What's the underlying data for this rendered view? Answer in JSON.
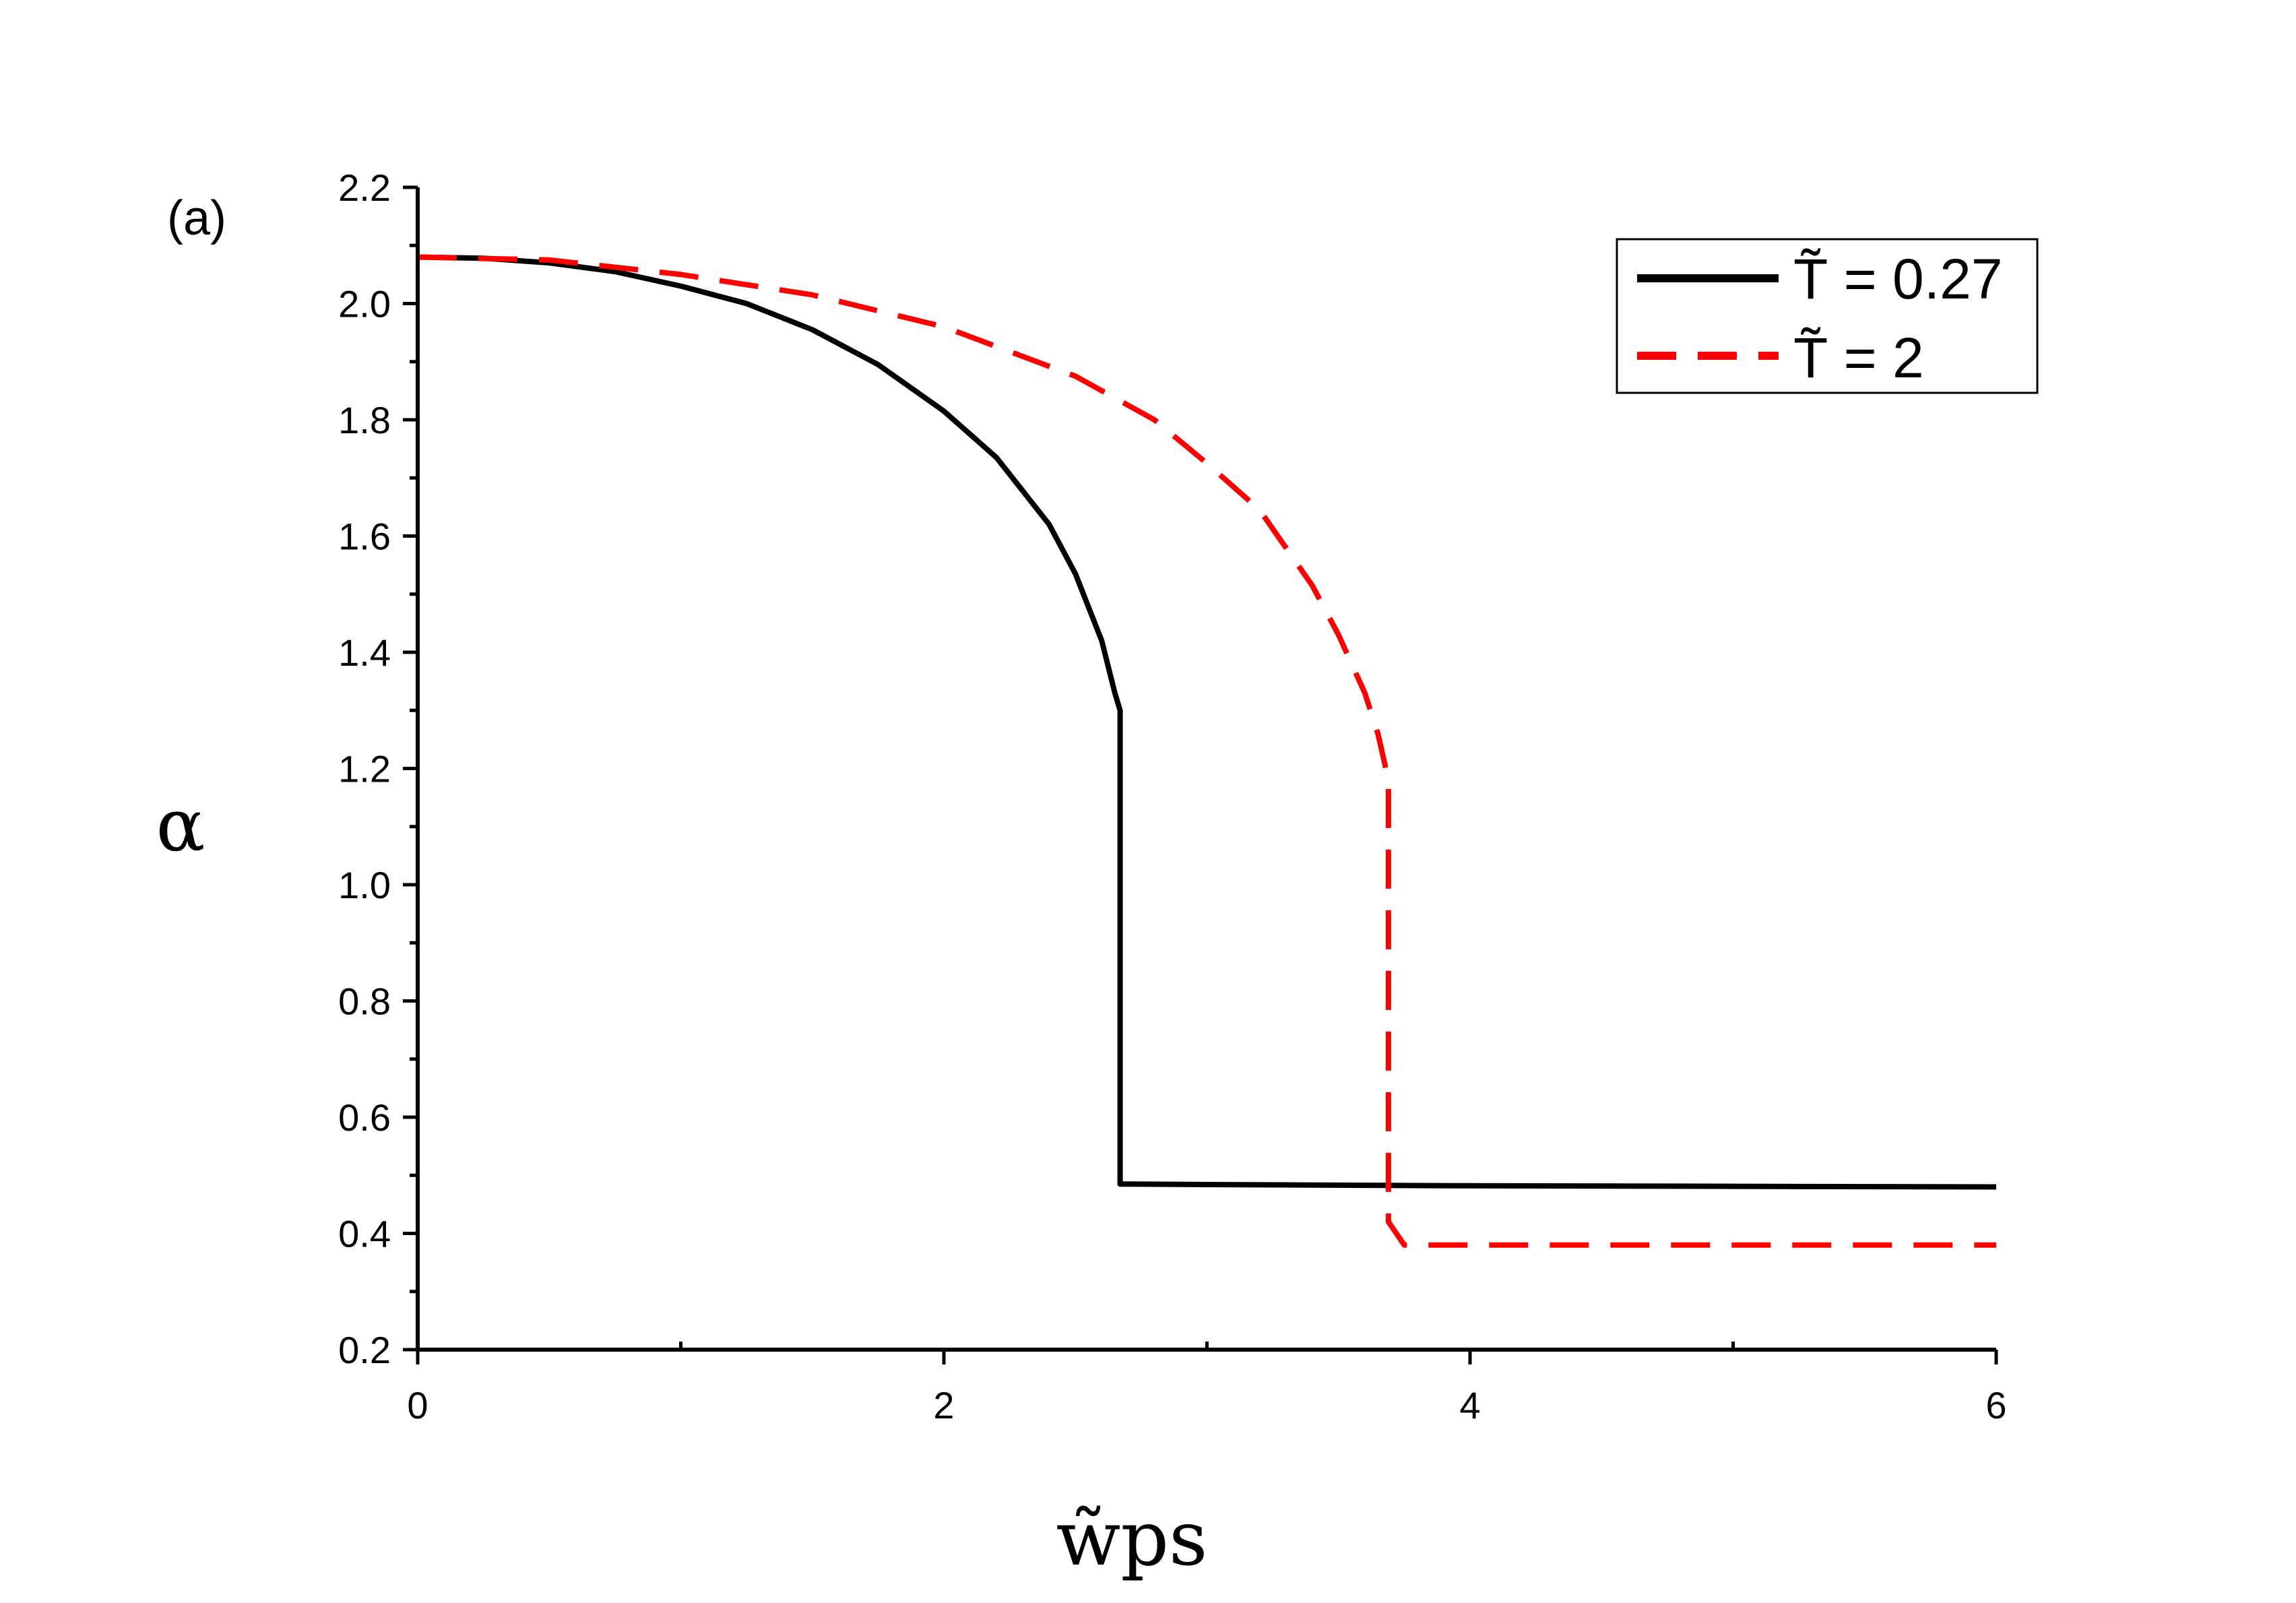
{
  "chart_data": {
    "type": "line",
    "panel_label": "(a)",
    "xlabel": "w̃ps",
    "ylabel": "α",
    "xlim": [
      0,
      6
    ],
    "ylim": [
      0.2,
      2.2
    ],
    "x_ticks": [
      0,
      2,
      4,
      6
    ],
    "x_tick_labels": [
      "0",
      "2",
      "4",
      "6"
    ],
    "x_minor_ticks": [
      1,
      3,
      5
    ],
    "y_ticks": [
      0.2,
      0.4,
      0.6,
      0.8,
      1.0,
      1.2,
      1.4,
      1.6,
      1.8,
      2.0,
      2.2
    ],
    "y_tick_labels": [
      "0.2",
      "0.4",
      "0.6",
      "0.8",
      "1.0",
      "1.2",
      "1.4",
      "1.6",
      "1.8",
      "2.0",
      "2.2"
    ],
    "grid": false,
    "legend_position": "top-right",
    "series": [
      {
        "name": "T̃ = 0.27",
        "color": "#000000",
        "style": "solid",
        "x": [
          0,
          0.25,
          0.5,
          0.75,
          1.0,
          1.25,
          1.5,
          1.75,
          2.0,
          2.2,
          2.4,
          2.5,
          2.6,
          2.65,
          2.67,
          2.67,
          2.7,
          3.0,
          4.0,
          5.0,
          6.0
        ],
        "y": [
          2.08,
          2.078,
          2.07,
          2.055,
          2.03,
          2.0,
          1.955,
          1.895,
          1.815,
          1.735,
          1.62,
          1.535,
          1.42,
          1.33,
          1.3,
          0.485,
          0.485,
          0.484,
          0.482,
          0.481,
          0.48
        ]
      },
      {
        "name": "T̃ = 2",
        "color": "#ff0000",
        "style": "dashed",
        "x": [
          0,
          0.5,
          1.0,
          1.5,
          2.0,
          2.5,
          2.8,
          3.0,
          3.2,
          3.4,
          3.5,
          3.6,
          3.65,
          3.68,
          3.69,
          3.69,
          3.75,
          4.0,
          5.0,
          6.0
        ],
        "y": [
          2.08,
          2.075,
          2.05,
          2.015,
          1.96,
          1.875,
          1.8,
          1.725,
          1.645,
          1.515,
          1.43,
          1.33,
          1.26,
          1.2,
          1.18,
          0.42,
          0.38,
          0.38,
          0.38,
          0.38
        ]
      }
    ]
  }
}
